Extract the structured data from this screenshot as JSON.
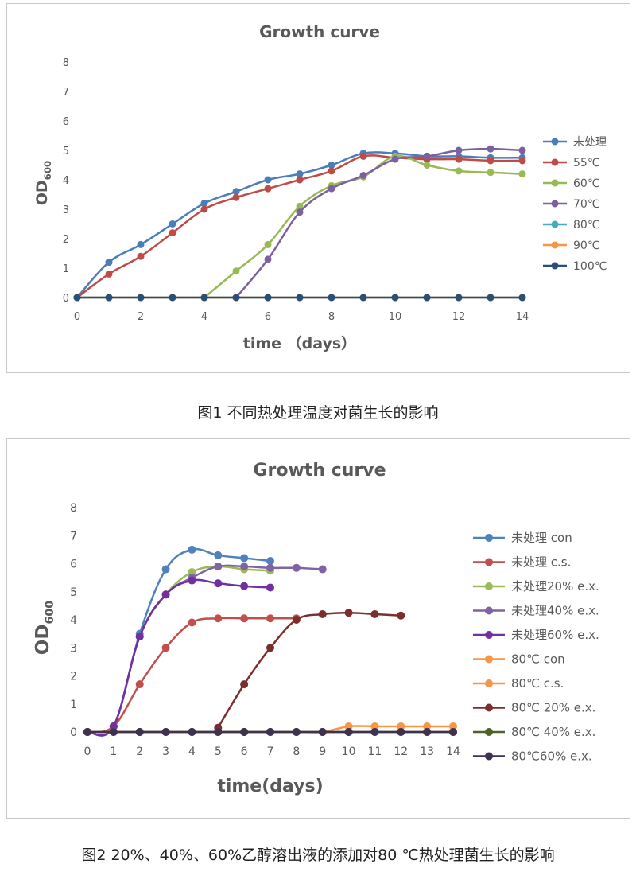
{
  "chart_data": [
    {
      "type": "line",
      "title": "Growth curve",
      "xlabel": "time （days）",
      "ylabel_main": "OD",
      "ylabel_sub": "600",
      "xlim": [
        0,
        14
      ],
      "ylim": [
        0,
        8
      ],
      "xticks": [
        "0",
        "2",
        "4",
        "6",
        "8",
        "10",
        "12",
        "14"
      ],
      "yticks": [
        "0",
        "1",
        "2",
        "3",
        "4",
        "5",
        "6",
        "7",
        "8"
      ],
      "grid": false,
      "legend_position": "right",
      "series": [
        {
          "name": "未处理",
          "color": "#4A7EBB",
          "x": [
            0,
            1,
            2,
            3,
            4,
            5,
            6,
            7,
            8,
            9,
            10,
            11,
            12,
            13,
            14
          ],
          "y": [
            0,
            1.2,
            1.8,
            2.5,
            3.2,
            3.6,
            4.0,
            4.2,
            4.5,
            4.9,
            4.9,
            4.8,
            4.8,
            4.75,
            4.75
          ]
        },
        {
          "name": "55℃",
          "color": "#BE4B48",
          "x": [
            0,
            1,
            2,
            3,
            4,
            5,
            6,
            7,
            8,
            9,
            10,
            11,
            12,
            13,
            14
          ],
          "y": [
            0,
            0.8,
            1.4,
            2.2,
            3.0,
            3.4,
            3.7,
            4.0,
            4.3,
            4.8,
            4.75,
            4.7,
            4.7,
            4.65,
            4.65
          ]
        },
        {
          "name": "60℃",
          "color": "#98B954",
          "x": [
            4,
            5,
            6,
            7,
            8,
            9,
            10,
            11,
            12,
            13,
            14
          ],
          "y": [
            0,
            0.9,
            1.8,
            3.1,
            3.8,
            4.1,
            4.8,
            4.5,
            4.3,
            4.25,
            4.2
          ]
        },
        {
          "name": "70℃",
          "color": "#7D60A0",
          "x": [
            5,
            6,
            7,
            8,
            9,
            10,
            11,
            12,
            13,
            14
          ],
          "y": [
            0,
            1.3,
            2.9,
            3.7,
            4.15,
            4.7,
            4.8,
            5.0,
            5.05,
            5.0
          ]
        },
        {
          "name": "80℃",
          "color": "#46AAC5",
          "x": [
            0,
            1,
            2,
            3,
            4,
            5,
            6,
            7,
            8,
            9,
            10,
            11,
            12,
            13,
            14
          ],
          "y": [
            0,
            0,
            0,
            0,
            0,
            0,
            0,
            0,
            0,
            0,
            0,
            0,
            0,
            0,
            0
          ]
        },
        {
          "name": "90℃",
          "color": "#F79646",
          "x": [
            0,
            1,
            2,
            3,
            4,
            5,
            6,
            7,
            8,
            9,
            10,
            11,
            12,
            13,
            14
          ],
          "y": [
            0,
            0,
            0,
            0,
            0,
            0,
            0,
            0,
            0,
            0,
            0,
            0,
            0,
            0,
            0
          ]
        },
        {
          "name": "100℃",
          "color": "#2C4D75",
          "x": [
            0,
            1,
            2,
            3,
            4,
            5,
            6,
            7,
            8,
            9,
            10,
            11,
            12,
            13,
            14
          ],
          "y": [
            0,
            0,
            0,
            0,
            0,
            0,
            0,
            0,
            0,
            0,
            0,
            0,
            0,
            0,
            0
          ]
        }
      ]
    },
    {
      "type": "line",
      "title": "Growth curve",
      "xlabel": "time(days)",
      "ylabel_main": "OD",
      "ylabel_sub": "600",
      "xlim": [
        0,
        14
      ],
      "ylim": [
        0,
        8
      ],
      "xticks": [
        "0",
        "1",
        "2",
        "3",
        "4",
        "5",
        "6",
        "7",
        "8",
        "9",
        "10",
        "11",
        "12",
        "13",
        "14"
      ],
      "yticks": [
        "0",
        "1",
        "2",
        "3",
        "4",
        "5",
        "6",
        "7",
        "8"
      ],
      "grid": false,
      "legend_position": "right",
      "series": [
        {
          "name": "未处理 con",
          "color": "#4F81BD",
          "x": [
            0,
            1,
            2,
            3,
            4,
            5,
            6,
            7
          ],
          "y": [
            0,
            0.2,
            3.5,
            5.8,
            6.5,
            6.3,
            6.2,
            6.1
          ]
        },
        {
          "name": "未处理 c.s.",
          "color": "#C0504D",
          "x": [
            0,
            1,
            2,
            3,
            4,
            5,
            6,
            7,
            8
          ],
          "y": [
            0,
            0.2,
            1.7,
            3.0,
            3.9,
            4.05,
            4.05,
            4.05,
            4.05
          ]
        },
        {
          "name": "未处理20% e.x.",
          "color": "#9BBB59",
          "x": [
            0,
            1,
            2,
            3,
            4,
            5,
            6,
            7
          ],
          "y": [
            0,
            0.2,
            3.4,
            4.9,
            5.7,
            5.9,
            5.8,
            5.75
          ]
        },
        {
          "name": "未处理40% e.x.",
          "color": "#8064A2",
          "x": [
            0,
            1,
            2,
            3,
            4,
            5,
            6,
            7,
            8,
            9
          ],
          "y": [
            0,
            0.2,
            3.4,
            4.9,
            5.5,
            5.9,
            5.9,
            5.85,
            5.85,
            5.8
          ]
        },
        {
          "name": "未处理60% e.x.",
          "color": "#7030A0",
          "x": [
            0,
            1,
            2,
            3,
            4,
            5,
            6,
            7
          ],
          "y": [
            0,
            0.2,
            3.4,
            4.9,
            5.4,
            5.3,
            5.2,
            5.15
          ]
        },
        {
          "name": "80℃ con",
          "color": "#F79646",
          "x": [
            0,
            1,
            2,
            3,
            4,
            5,
            6,
            7,
            8,
            9,
            10,
            11,
            12,
            13,
            14
          ],
          "y": [
            0,
            0,
            0,
            0,
            0,
            0,
            0,
            0,
            0,
            0,
            0.2,
            0.2,
            0.2,
            0.2,
            0.2
          ]
        },
        {
          "name": "80℃ c.s.",
          "color": "#F79646",
          "x": [
            0,
            1,
            2,
            3,
            4,
            5,
            6,
            7,
            8,
            9,
            10,
            11,
            12,
            13,
            14
          ],
          "y": [
            0,
            0,
            0,
            0,
            0,
            0,
            0,
            0,
            0,
            0,
            0,
            0,
            0,
            0,
            0
          ]
        },
        {
          "name": "80℃ 20% e.x.",
          "color": "#7B2E2E",
          "x": [
            5,
            6,
            7,
            8,
            9,
            10,
            11,
            12
          ],
          "y": [
            0.15,
            1.7,
            3.0,
            4.0,
            4.2,
            4.25,
            4.2,
            4.15
          ]
        },
        {
          "name": "80℃ 40% e.x.",
          "color": "#4F6228",
          "x": [
            0,
            1,
            2,
            3,
            4,
            5,
            6,
            7,
            8,
            9,
            10,
            11,
            12,
            13,
            14
          ],
          "y": [
            0,
            0,
            0,
            0,
            0,
            0,
            0,
            0,
            0,
            0,
            0,
            0,
            0,
            0,
            0
          ]
        },
        {
          "name": "80℃60% e.x.",
          "color": "#3F3151",
          "x": [
            0,
            1,
            2,
            3,
            4,
            5,
            6,
            7,
            8,
            9,
            10,
            11,
            12,
            13,
            14
          ],
          "y": [
            0,
            0,
            0,
            0,
            0,
            0,
            0,
            0,
            0,
            0,
            0,
            0,
            0,
            0,
            0
          ]
        }
      ]
    }
  ],
  "captions": [
    "图1  不同热处理温度对菌生长的影响",
    "图2  20%、40%、60%乙醇溶出液的添加对80 ℃热处理菌生长的影响"
  ]
}
